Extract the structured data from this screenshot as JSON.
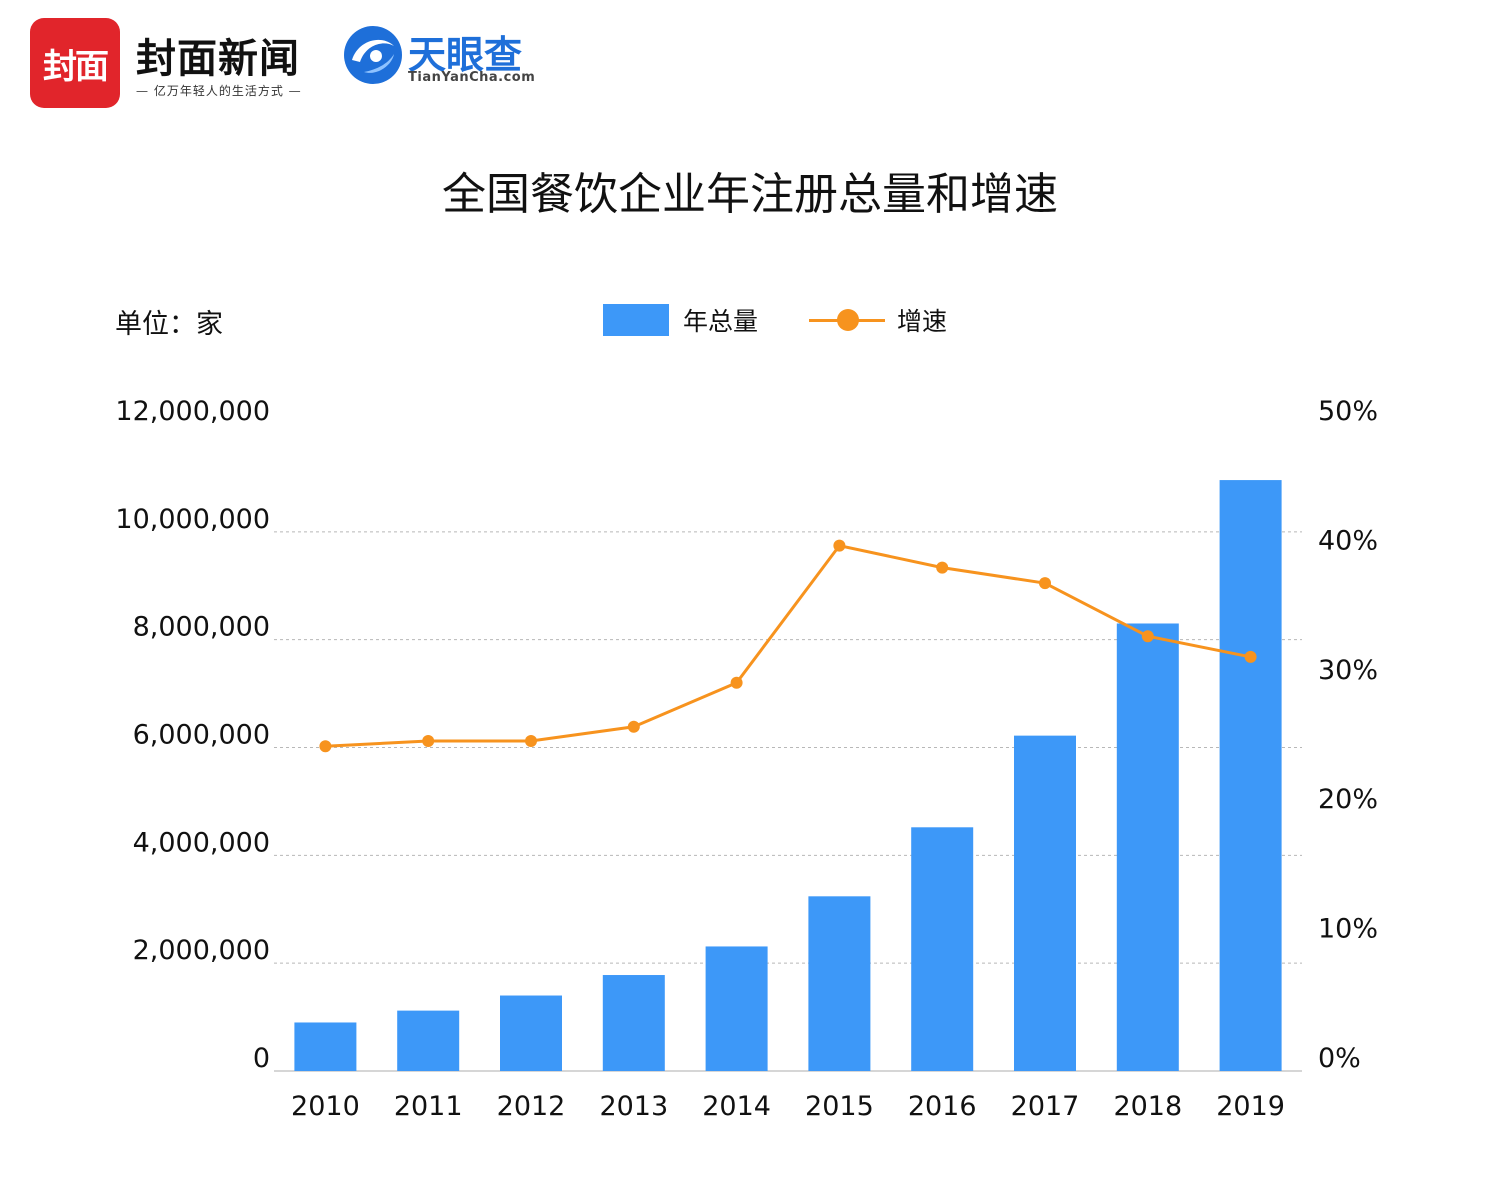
{
  "header": {
    "logo_text": "封面",
    "brand_name": "封面新闻",
    "brand_slogan": "— 亿万年轻人的生活方式 —",
    "partner_name": "天眼查",
    "partner_url": "TianYanCha.com"
  },
  "chart_data": {
    "type": "bar",
    "title": "全国餐饮企业年注册总量和增速",
    "unit_label": "单位：家",
    "categories": [
      "2010",
      "2011",
      "2012",
      "2013",
      "2014",
      "2015",
      "2016",
      "2017",
      "2018",
      "2019"
    ],
    "series": [
      {
        "name": "年总量",
        "type": "bar",
        "axis": "left",
        "color": "#3d98f8",
        "values": [
          900000,
          1120000,
          1400000,
          1780000,
          2310000,
          3240000,
          4520000,
          6220000,
          8300000,
          10960000
        ]
      },
      {
        "name": "增速",
        "type": "line",
        "axis": "right",
        "color": "#f7931e",
        "values": [
          25.1,
          25.5,
          25.5,
          26.6,
          30.0,
          40.6,
          38.9,
          37.7,
          33.6,
          32.0
        ]
      }
    ],
    "y_left": {
      "min": 0,
      "max": 12000000,
      "ticks": [
        0,
        2000000,
        4000000,
        6000000,
        8000000,
        10000000,
        12000000
      ],
      "tick_labels": [
        "0",
        "2,000,000",
        "4,000,000",
        "6,000,000",
        "8,000,000",
        "10,000,000",
        "12,000,000"
      ]
    },
    "y_right": {
      "min": 0,
      "max": 50,
      "ticks": [
        0,
        10,
        20,
        30,
        40,
        50
      ],
      "tick_labels": [
        "0%",
        "10%",
        "20%",
        "30%",
        "40%",
        "50%"
      ]
    },
    "grid": "dashed horizontal",
    "legend_position": "top-center"
  }
}
